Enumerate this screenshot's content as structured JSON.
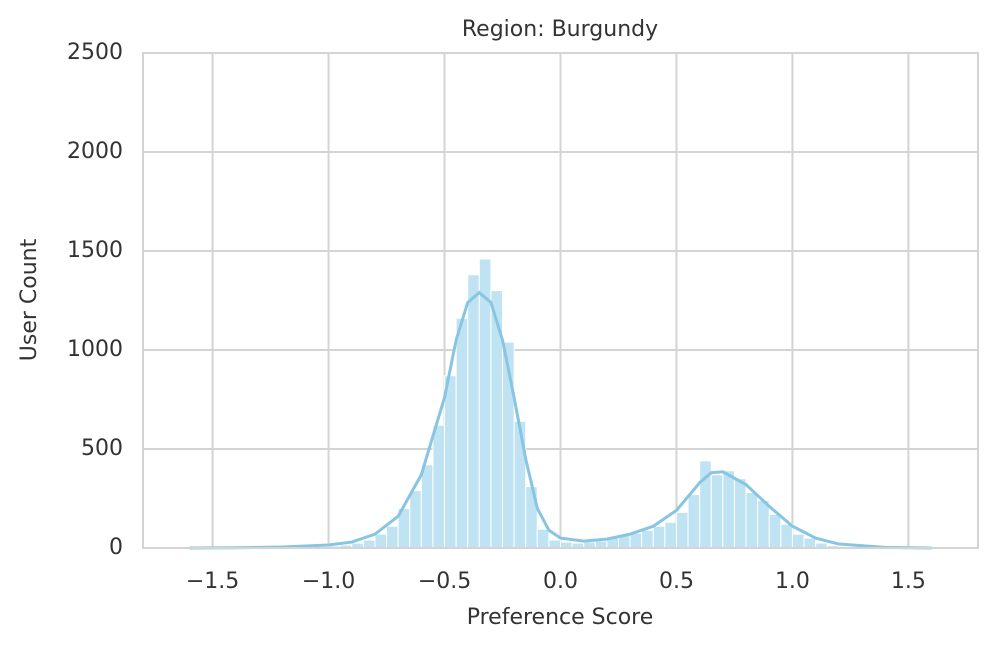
{
  "chart_data": {
    "type": "histogram",
    "title": "Region: Burgundy",
    "x_label": "Preference Score",
    "y_label": "User Count",
    "bins": [
      -1.0,
      -0.95,
      -0.9,
      -0.85,
      -0.8,
      -0.75,
      -0.7,
      -0.65,
      -0.6,
      -0.55,
      -0.5,
      -0.45,
      -0.4,
      -0.35,
      -0.3,
      -0.25,
      -0.2,
      -0.15,
      -0.1,
      -0.05,
      0,
      0.05,
      0.1,
      0.15,
      0.2,
      0.25,
      0.3,
      0.35,
      0.4,
      0.45,
      0.5,
      0.55,
      0.6,
      0.65,
      0.7,
      0.75,
      0.8,
      0.85,
      0.9,
      0.95,
      1.0,
      1.05,
      1.1,
      1.15,
      1.2,
      1.25
    ],
    "counts": [
      10,
      15,
      25,
      40,
      70,
      110,
      200,
      290,
      420,
      620,
      870,
      1160,
      1380,
      1460,
      1300,
      1040,
      640,
      310,
      95,
      40,
      30,
      25,
      30,
      35,
      50,
      65,
      75,
      90,
      110,
      130,
      180,
      270,
      440,
      370,
      390,
      350,
      280,
      240,
      170,
      120,
      70,
      50,
      25,
      12,
      5
    ],
    "color": "#bfe3f2",
    "kde": {
      "x": [
        -1.6,
        -1.4,
        -1.2,
        -1.0,
        -0.9,
        -0.8,
        -0.7,
        -0.6,
        -0.5,
        -0.45,
        -0.4,
        -0.35,
        -0.3,
        -0.25,
        -0.2,
        -0.15,
        -0.1,
        -0.05,
        0,
        0.1,
        0.2,
        0.3,
        0.4,
        0.5,
        0.6,
        0.65,
        0.7,
        0.8,
        0.9,
        1.0,
        1.1,
        1.2,
        1.4,
        1.6
      ],
      "values": [
        0,
        1,
        5,
        15,
        30,
        70,
        160,
        370,
        760,
        1050,
        1240,
        1290,
        1240,
        1050,
        760,
        450,
        200,
        90,
        50,
        35,
        45,
        70,
        110,
        190,
        330,
        380,
        385,
        320,
        210,
        110,
        50,
        20,
        3,
        0
      ],
      "color": "#87c5e3"
    },
    "xlim": [
      -1.8,
      1.8
    ],
    "ylim": [
      0,
      2500
    ],
    "xticks": [
      {
        "value": -1.5,
        "label": "−1.5"
      },
      {
        "value": -1.0,
        "label": "−1.0"
      },
      {
        "value": -0.5,
        "label": "−0.5"
      },
      {
        "value": 0,
        "label": "0.0"
      },
      {
        "value": 0.5,
        "label": "0.5"
      },
      {
        "value": 1.0,
        "label": "1.0"
      },
      {
        "value": 1.5,
        "label": "1.5"
      }
    ],
    "yticks": [
      0,
      500,
      1000,
      1500,
      2000,
      2500
    ],
    "grid": true
  }
}
